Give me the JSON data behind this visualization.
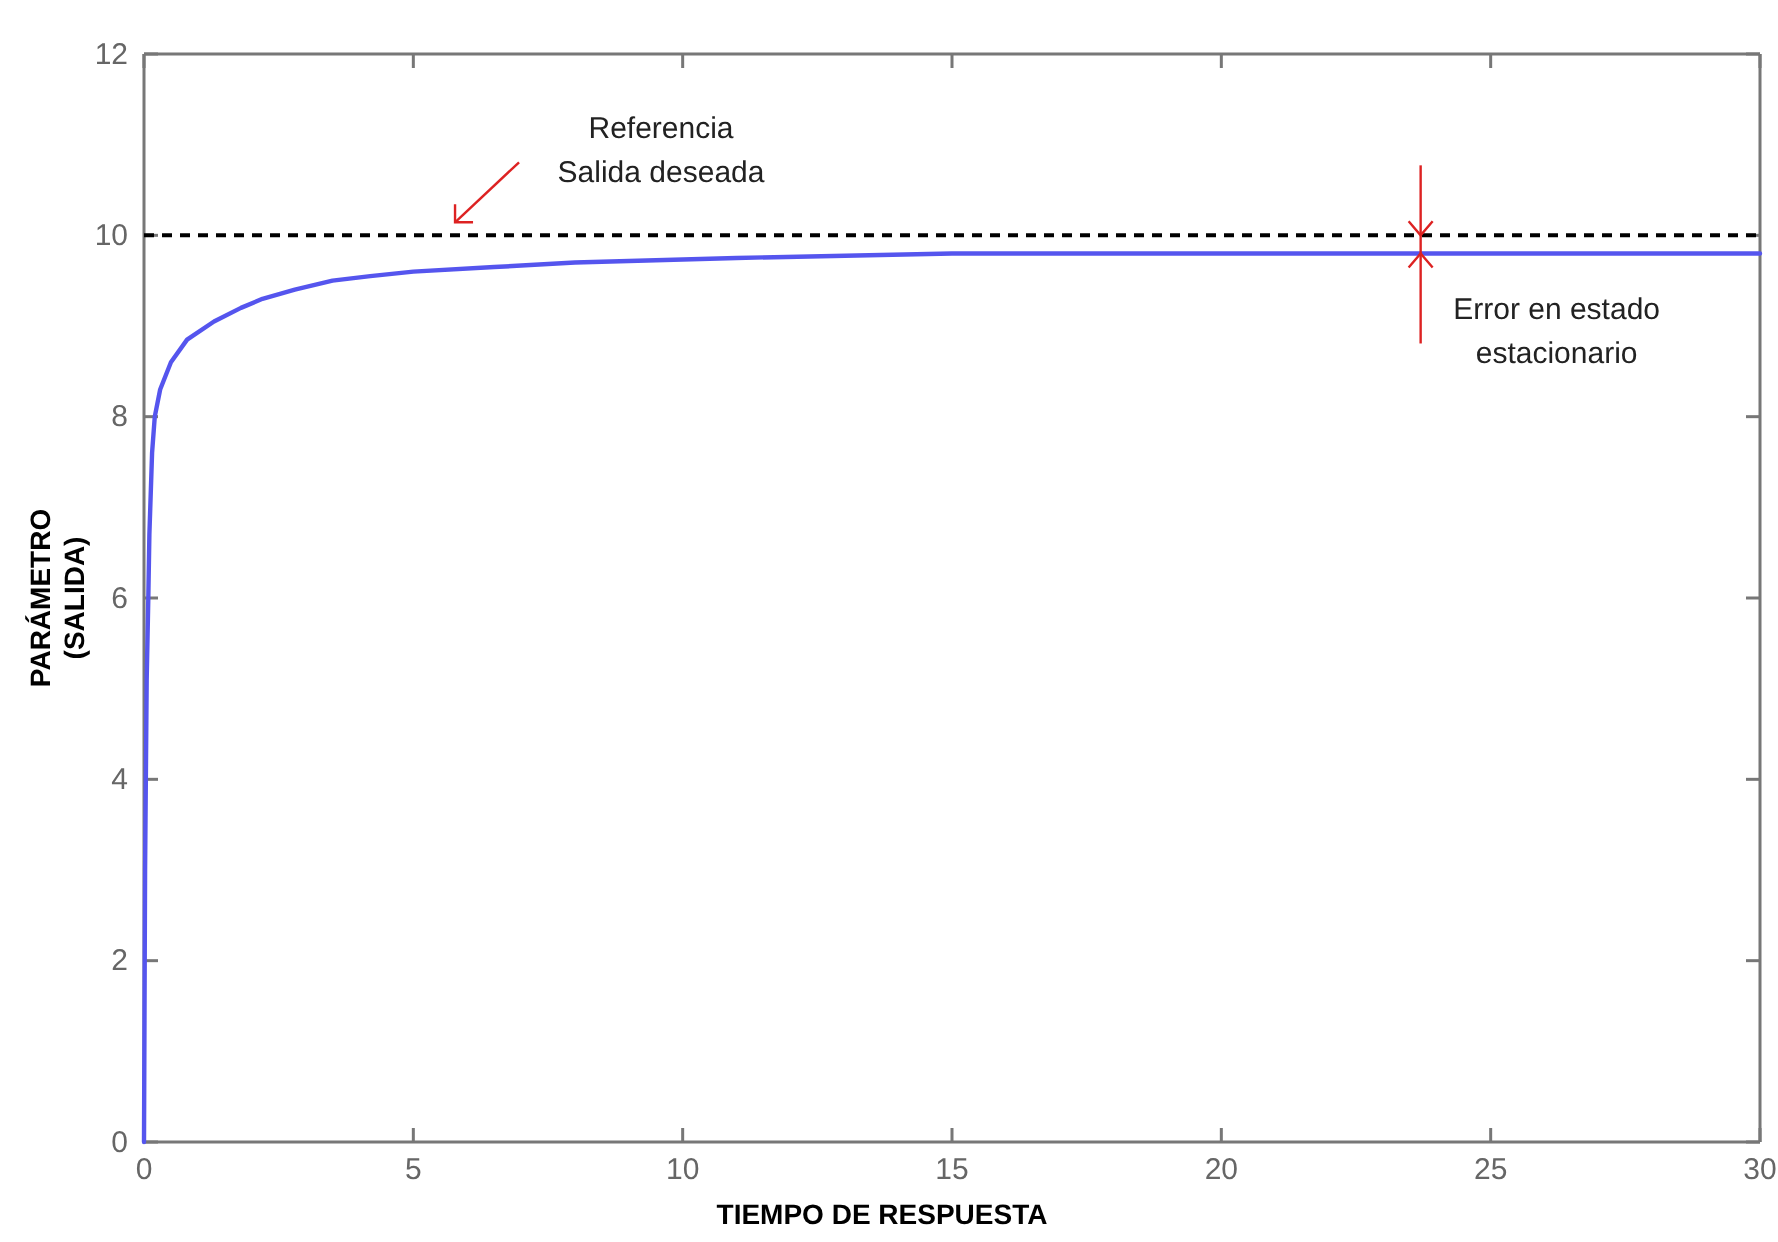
{
  "chart_data": {
    "type": "line",
    "xlabel": "TIEMPO DE RESPUESTA",
    "ylabel": "PARÁMETRO\n(SALIDA)",
    "x": [
      0,
      0.02,
      0.05,
      0.08,
      0.1,
      0.15,
      0.2,
      0.3,
      0.5,
      0.8,
      1.3,
      1.8,
      2.2,
      2.8,
      3.5,
      4.2,
      5,
      6.5,
      8,
      11,
      15,
      20,
      25,
      30
    ],
    "series": [
      {
        "color": "#5555ee",
        "values": [
          0,
          3,
          5.1,
          6,
          6.7,
          7.6,
          8,
          8.3,
          8.6,
          8.85,
          9.05,
          9.2,
          9.3,
          9.4,
          9.5,
          9.55,
          9.6,
          9.65,
          9.7,
          9.75,
          9.8,
          9.8,
          9.8,
          9.8
        ]
      }
    ],
    "xlim": [
      0,
      30
    ],
    "xticks": [
      0,
      5,
      10,
      15,
      20,
      25,
      30
    ],
    "ylim": [
      0,
      12
    ],
    "yticks": [
      0,
      2,
      4,
      6,
      8,
      10,
      12
    ],
    "grid": false,
    "marker": "none",
    "line_style": "solid",
    "ref_lines": [
      {
        "axis": "y",
        "value": 10,
        "color": "#000000",
        "line_style": "dashed"
      }
    ],
    "annotations": [
      {
        "text": "Referencia\nSalida deseada",
        "x": 5.7,
        "y": 10.1
      },
      {
        "text": "Error en estado\nestacionario",
        "x": 23.7,
        "y": 9.8
      }
    ]
  }
}
